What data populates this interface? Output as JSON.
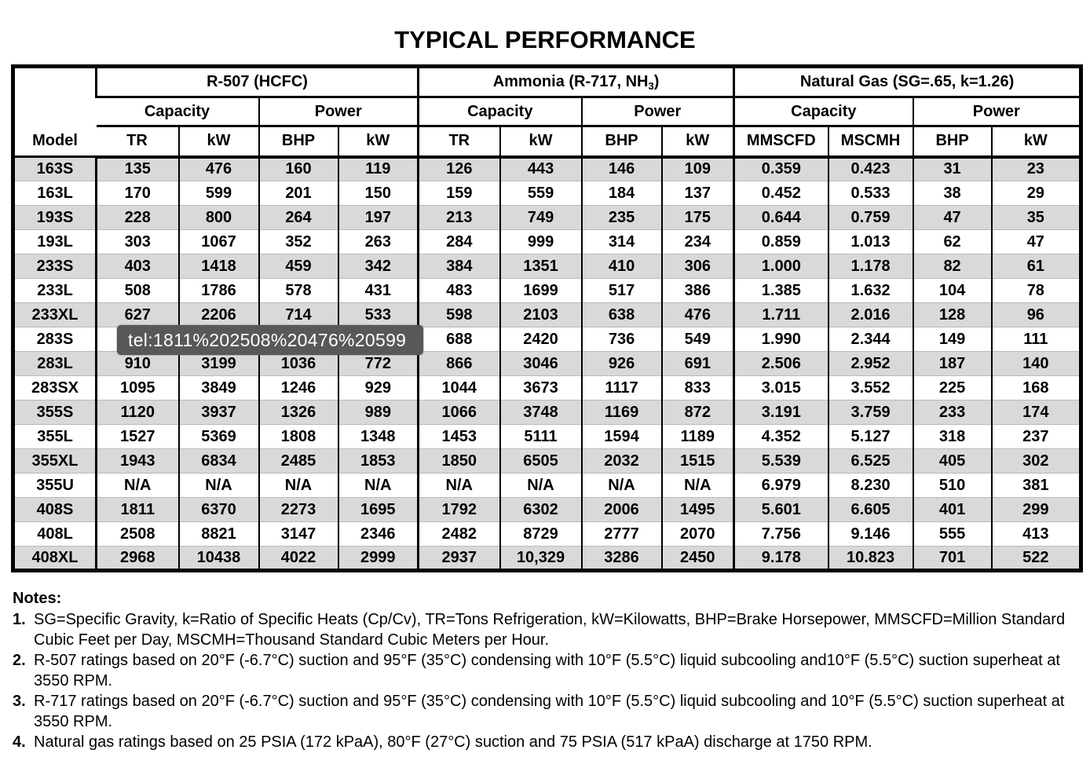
{
  "title": "TYPICAL PERFORMANCE",
  "tooltip": {
    "text": "tel:1811%202508%20476%20599"
  },
  "colors": {
    "row_stripe": "#d9d9d9",
    "tooltip_bg": "#58585a",
    "table_border": "#000000"
  },
  "table": {
    "model_header": "Model",
    "groups": [
      {
        "label": "R-507 (HCFC)"
      },
      {
        "label_prefix": "Ammonia (R-717, NH",
        "label_sub": "3",
        "label_suffix": ")"
      },
      {
        "label": "Natural Gas (SG=.65, k=1.26)"
      }
    ],
    "subheaders": [
      {
        "label": "Capacity"
      },
      {
        "label": "Power"
      },
      {
        "label": "Capacity"
      },
      {
        "label": "Power"
      },
      {
        "label": "Capacity"
      },
      {
        "label": "Power"
      }
    ],
    "columns": [
      "TR",
      "kW",
      "BHP",
      "kW",
      "TR",
      "kW",
      "BHP",
      "kW",
      "MMSCFD",
      "MSCMH",
      "BHP",
      "kW"
    ],
    "rows": [
      {
        "model": "163S",
        "values": [
          "135",
          "476",
          "160",
          "119",
          "126",
          "443",
          "146",
          "109",
          "0.359",
          "0.423",
          "31",
          "23"
        ]
      },
      {
        "model": "163L",
        "values": [
          "170",
          "599",
          "201",
          "150",
          "159",
          "559",
          "184",
          "137",
          "0.452",
          "0.533",
          "38",
          "29"
        ]
      },
      {
        "model": "193S",
        "values": [
          "228",
          "800",
          "264",
          "197",
          "213",
          "749",
          "235",
          "175",
          "0.644",
          "0.759",
          "47",
          "35"
        ]
      },
      {
        "model": "193L",
        "values": [
          "303",
          "1067",
          "352",
          "263",
          "284",
          "999",
          "314",
          "234",
          "0.859",
          "1.013",
          "62",
          "47"
        ]
      },
      {
        "model": "233S",
        "values": [
          "403",
          "1418",
          "459",
          "342",
          "384",
          "1351",
          "410",
          "306",
          "1.000",
          "1.178",
          "82",
          "61"
        ]
      },
      {
        "model": "233L",
        "values": [
          "508",
          "1786",
          "578",
          "431",
          "483",
          "1699",
          "517",
          "386",
          "1.385",
          "1.632",
          "104",
          "78"
        ]
      },
      {
        "model": "233XL",
        "values": [
          "627",
          "2206",
          "714",
          "533",
          "598",
          "2103",
          "638",
          "476",
          "1.711",
          "2.016",
          "128",
          "96"
        ]
      },
      {
        "model": "283S",
        "values": [
          "",
          "",
          "",
          "",
          "688",
          "2420",
          "736",
          "549",
          "1.990",
          "2.344",
          "149",
          "111"
        ]
      },
      {
        "model": "283L",
        "values": [
          "910",
          "3199",
          "1036",
          "772",
          "866",
          "3046",
          "926",
          "691",
          "2.506",
          "2.952",
          "187",
          "140"
        ]
      },
      {
        "model": "283SX",
        "values": [
          "1095",
          "3849",
          "1246",
          "929",
          "1044",
          "3673",
          "1117",
          "833",
          "3.015",
          "3.552",
          "225",
          "168"
        ]
      },
      {
        "model": "355S",
        "values": [
          "1120",
          "3937",
          "1326",
          "989",
          "1066",
          "3748",
          "1169",
          "872",
          "3.191",
          "3.759",
          "233",
          "174"
        ]
      },
      {
        "model": "355L",
        "values": [
          "1527",
          "5369",
          "1808",
          "1348",
          "1453",
          "5111",
          "1594",
          "1189",
          "4.352",
          "5.127",
          "318",
          "237"
        ]
      },
      {
        "model": "355XL",
        "values": [
          "1943",
          "6834",
          "2485",
          "1853",
          "1850",
          "6505",
          "2032",
          "1515",
          "5.539",
          "6.525",
          "405",
          "302"
        ]
      },
      {
        "model": "355U",
        "values": [
          "N/A",
          "N/A",
          "N/A",
          "N/A",
          "N/A",
          "N/A",
          "N/A",
          "N/A",
          "6.979",
          "8.230",
          "510",
          "381"
        ]
      },
      {
        "model": "408S",
        "values": [
          "1811",
          "6370",
          "2273",
          "1695",
          "1792",
          "6302",
          "2006",
          "1495",
          "5.601",
          "6.605",
          "401",
          "299"
        ]
      },
      {
        "model": "408L",
        "values": [
          "2508",
          "8821",
          "3147",
          "2346",
          "2482",
          "8729",
          "2777",
          "2070",
          "7.756",
          "9.146",
          "555",
          "413"
        ]
      },
      {
        "model": "408XL",
        "values": [
          "2968",
          "10438",
          "4022",
          "2999",
          "2937",
          "10,329",
          "3286",
          "2450",
          "9.178",
          "10.823",
          "701",
          "522"
        ]
      }
    ]
  },
  "notes": {
    "heading": "Notes:",
    "items": [
      {
        "num": "1.",
        "text": "SG=Specific Gravity, k=Ratio of Specific Heats (Cp/Cv), TR=Tons Refrigeration, kW=Kilowatts, BHP=Brake Horsepower, MMSCFD=Million Standard Cubic Feet per Day, MSCMH=Thousand Standard Cubic Meters per Hour."
      },
      {
        "num": "2.",
        "text": "R-507 ratings based on 20°F (-6.7°C) suction and 95°F (35°C) condensing with 10°F (5.5°C) liquid subcooling and10°F (5.5°C) suction superheat at 3550 RPM."
      },
      {
        "num": "3.",
        "text": "R-717 ratings based on 20°F (-6.7°C) suction and 95°F (35°C) condensing with 10°F (5.5°C) liquid subcooling and 10°F (5.5°C) suction superheat at 3550 RPM."
      },
      {
        "num": "4.",
        "text": "Natural gas ratings based on 25 PSIA (172 kPaA), 80°F (27°C) suction and 75 PSIA (517 kPaA) discharge at 1750 RPM."
      }
    ]
  }
}
